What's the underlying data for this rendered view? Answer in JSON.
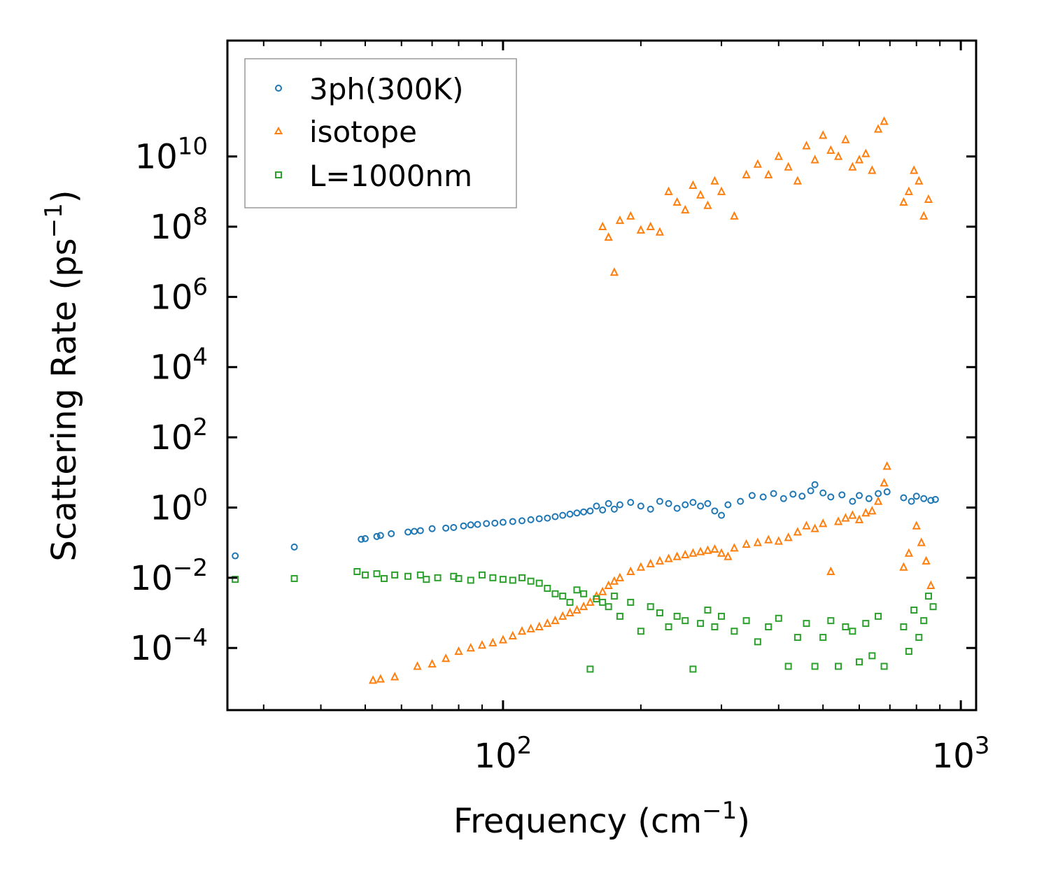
{
  "chart_data": {
    "type": "scatter",
    "x_scale": "log",
    "y_scale": "log",
    "xlabel_base": "Frequency (cm",
    "xlabel_sup": "−1",
    "xlabel_end": ")",
    "ylabel_base": "Scattering Rate (ps",
    "ylabel_sup": "−1",
    "ylabel_end": ")",
    "xlim": [
      25,
      1080
    ],
    "ylim": [
      1.7e-06,
      20000000000000
    ],
    "x_ticks": [
      {
        "value": 100,
        "base": "10",
        "exp": "2"
      },
      {
        "value": 1000,
        "base": "10",
        "exp": "3"
      }
    ],
    "y_ticks": [
      {
        "value": 0.0001,
        "base": "10",
        "exp": "−4"
      },
      {
        "value": 0.01,
        "base": "10",
        "exp": "−2"
      },
      {
        "value": 1,
        "base": "10",
        "exp": "0"
      },
      {
        "value": 100,
        "base": "10",
        "exp": "2"
      },
      {
        "value": 10000,
        "base": "10",
        "exp": "4"
      },
      {
        "value": 1000000,
        "base": "10",
        "exp": "6"
      },
      {
        "value": 100000000,
        "base": "10",
        "exp": "8"
      },
      {
        "value": 10000000000,
        "base": "10",
        "exp": "10"
      }
    ],
    "legend": {
      "position": "upper-left",
      "entries": [
        {
          "label": "3ph(300K)",
          "marker": "circle",
          "color": "#1f77b4"
        },
        {
          "label": "isotope",
          "marker": "triangle",
          "color": "#ff7f0e"
        },
        {
          "label": "L=1000nm",
          "marker": "square",
          "color": "#2ca02c"
        }
      ]
    },
    "series": [
      {
        "name": "3ph(300K)",
        "marker": "circle",
        "color": "#1f77b4",
        "points": [
          [
            26,
            0.042
          ],
          [
            35,
            0.075
          ],
          [
            49,
            0.125
          ],
          [
            50,
            0.13
          ],
          [
            53,
            0.15
          ],
          [
            54,
            0.16
          ],
          [
            57,
            0.18
          ],
          [
            62,
            0.2
          ],
          [
            64,
            0.21
          ],
          [
            66,
            0.22
          ],
          [
            70,
            0.25
          ],
          [
            75,
            0.26
          ],
          [
            78,
            0.27
          ],
          [
            82,
            0.3
          ],
          [
            85,
            0.32
          ],
          [
            88,
            0.33
          ],
          [
            92,
            0.35
          ],
          [
            96,
            0.36
          ],
          [
            100,
            0.38
          ],
          [
            105,
            0.4
          ],
          [
            110,
            0.42
          ],
          [
            115,
            0.45
          ],
          [
            120,
            0.48
          ],
          [
            125,
            0.5
          ],
          [
            130,
            0.55
          ],
          [
            135,
            0.6
          ],
          [
            140,
            0.65
          ],
          [
            145,
            0.7
          ],
          [
            150,
            0.75
          ],
          [
            155,
            0.8
          ],
          [
            160,
            1.1
          ],
          [
            165,
            0.85
          ],
          [
            170,
            1.3
          ],
          [
            175,
            0.9
          ],
          [
            180,
            1.2
          ],
          [
            190,
            1.4
          ],
          [
            200,
            1.1
          ],
          [
            210,
            0.9
          ],
          [
            220,
            1.5
          ],
          [
            230,
            1.3
          ],
          [
            240,
            0.95
          ],
          [
            250,
            1.2
          ],
          [
            260,
            1.4
          ],
          [
            270,
            1.1
          ],
          [
            280,
            1.3
          ],
          [
            290,
            0.8
          ],
          [
            300,
            0.6
          ],
          [
            310,
            1.2
          ],
          [
            330,
            1.5
          ],
          [
            350,
            2.2
          ],
          [
            370,
            2.0
          ],
          [
            390,
            2.5
          ],
          [
            410,
            1.8
          ],
          [
            430,
            2.4
          ],
          [
            450,
            2.1
          ],
          [
            470,
            3.0
          ],
          [
            480,
            4.5
          ],
          [
            500,
            2.6
          ],
          [
            520,
            2.0
          ],
          [
            550,
            2.3
          ],
          [
            580,
            1.5
          ],
          [
            600,
            2.2
          ],
          [
            630,
            1.8
          ],
          [
            660,
            2.5
          ],
          [
            690,
            2.8
          ],
          [
            750,
            1.9
          ],
          [
            780,
            1.5
          ],
          [
            800,
            2.1
          ],
          [
            830,
            1.8
          ],
          [
            860,
            1.6
          ],
          [
            880,
            1.7
          ]
        ]
      },
      {
        "name": "isotope",
        "marker": "triangle",
        "color": "#ff7f0e",
        "points": [
          [
            52,
            1.2e-05
          ],
          [
            54,
            1.3e-05
          ],
          [
            58,
            1.5e-05
          ],
          [
            65,
            3e-05
          ],
          [
            70,
            3.5e-05
          ],
          [
            75,
            5e-05
          ],
          [
            80,
            8e-05
          ],
          [
            85,
            0.0001
          ],
          [
            90,
            0.00012
          ],
          [
            95,
            0.00014
          ],
          [
            100,
            0.00017
          ],
          [
            105,
            0.00022
          ],
          [
            110,
            0.0003
          ],
          [
            115,
            0.00035
          ],
          [
            120,
            0.0004
          ],
          [
            125,
            0.0005
          ],
          [
            130,
            0.0006
          ],
          [
            135,
            0.0008
          ],
          [
            140,
            0.001
          ],
          [
            145,
            0.0012
          ],
          [
            150,
            0.0015
          ],
          [
            155,
            0.002
          ],
          [
            160,
            0.003
          ],
          [
            165,
            0.004
          ],
          [
            170,
            0.006
          ],
          [
            175,
            0.008
          ],
          [
            180,
            0.01
          ],
          [
            190,
            0.015
          ],
          [
            200,
            0.02
          ],
          [
            210,
            0.025
          ],
          [
            220,
            0.03
          ],
          [
            230,
            0.035
          ],
          [
            240,
            0.04
          ],
          [
            250,
            0.045
          ],
          [
            260,
            0.05
          ],
          [
            270,
            0.055
          ],
          [
            280,
            0.06
          ],
          [
            290,
            0.065
          ],
          [
            300,
            0.05
          ],
          [
            310,
            0.04
          ],
          [
            320,
            0.07
          ],
          [
            340,
            0.09
          ],
          [
            360,
            0.1
          ],
          [
            380,
            0.12
          ],
          [
            400,
            0.11
          ],
          [
            420,
            0.14
          ],
          [
            440,
            0.2
          ],
          [
            460,
            0.3
          ],
          [
            480,
            0.25
          ],
          [
            500,
            0.35
          ],
          [
            520,
            0.015
          ],
          [
            540,
            0.4
          ],
          [
            560,
            0.5
          ],
          [
            580,
            0.6
          ],
          [
            600,
            0.45
          ],
          [
            620,
            0.7
          ],
          [
            640,
            0.8
          ],
          [
            660,
            1.5
          ],
          [
            680,
            5
          ],
          [
            690,
            15
          ],
          [
            750,
            0.02
          ],
          [
            770,
            0.05
          ],
          [
            800,
            0.3
          ],
          [
            820,
            0.1
          ],
          [
            840,
            0.03
          ],
          [
            860,
            0.006
          ],
          [
            165,
            100000000
          ],
          [
            170,
            50000000
          ],
          [
            175,
            5000000
          ],
          [
            180,
            150000000
          ],
          [
            190,
            200000000
          ],
          [
            200,
            80000000
          ],
          [
            210,
            100000000
          ],
          [
            220,
            70000000
          ],
          [
            230,
            1000000000
          ],
          [
            240,
            500000000
          ],
          [
            250,
            300000000
          ],
          [
            260,
            1500000000
          ],
          [
            270,
            800000000
          ],
          [
            280,
            400000000
          ],
          [
            290,
            2000000000
          ],
          [
            300,
            1000000000
          ],
          [
            320,
            200000000
          ],
          [
            340,
            3000000000
          ],
          [
            360,
            6000000000
          ],
          [
            380,
            3000000000
          ],
          [
            400,
            10000000000
          ],
          [
            420,
            5000000000
          ],
          [
            440,
            2000000000
          ],
          [
            460,
            20000000000
          ],
          [
            480,
            8000000000
          ],
          [
            500,
            40000000000
          ],
          [
            520,
            15000000000
          ],
          [
            540,
            10000000000
          ],
          [
            560,
            30000000000
          ],
          [
            580,
            5000000000
          ],
          [
            600,
            8000000000
          ],
          [
            620,
            12000000000
          ],
          [
            640,
            4000000000
          ],
          [
            660,
            60000000000
          ],
          [
            680,
            100000000000
          ],
          [
            750,
            500000000
          ],
          [
            770,
            1000000000
          ],
          [
            790,
            4000000000
          ],
          [
            810,
            2000000000
          ],
          [
            830,
            200000000
          ],
          [
            850,
            600000000
          ]
        ]
      },
      {
        "name": "L=1000nm",
        "marker": "square",
        "color": "#2ca02c",
        "points": [
          [
            26,
            0.009
          ],
          [
            35,
            0.0095
          ],
          [
            48,
            0.015
          ],
          [
            50,
            0.012
          ],
          [
            53,
            0.013
          ],
          [
            55,
            0.0095
          ],
          [
            58,
            0.012
          ],
          [
            62,
            0.011
          ],
          [
            66,
            0.012
          ],
          [
            68,
            0.009
          ],
          [
            72,
            0.01
          ],
          [
            78,
            0.011
          ],
          [
            80,
            0.0095
          ],
          [
            85,
            0.0085
          ],
          [
            90,
            0.012
          ],
          [
            95,
            0.01
          ],
          [
            100,
            0.009
          ],
          [
            105,
            0.0085
          ],
          [
            110,
            0.01
          ],
          [
            115,
            0.008
          ],
          [
            120,
            0.007
          ],
          [
            125,
            0.005
          ],
          [
            130,
            0.0035
          ],
          [
            135,
            0.003
          ],
          [
            140,
            0.002
          ],
          [
            145,
            0.0045
          ],
          [
            150,
            0.0035
          ],
          [
            155,
            2.5e-05
          ],
          [
            160,
            0.0025
          ],
          [
            165,
            0.002
          ],
          [
            170,
            0.0015
          ],
          [
            175,
            0.003
          ],
          [
            180,
            0.0008
          ],
          [
            190,
            0.002
          ],
          [
            200,
            0.0003
          ],
          [
            210,
            0.0015
          ],
          [
            220,
            0.001
          ],
          [
            230,
            0.0004
          ],
          [
            240,
            0.0008
          ],
          [
            250,
            0.0006
          ],
          [
            260,
            2.5e-05
          ],
          [
            270,
            0.0005
          ],
          [
            280,
            0.0012
          ],
          [
            290,
            0.0004
          ],
          [
            300,
            0.0008
          ],
          [
            320,
            0.0003
          ],
          [
            340,
            0.0006
          ],
          [
            360,
            0.00015
          ],
          [
            380,
            0.0004
          ],
          [
            400,
            0.0007
          ],
          [
            420,
            3e-05
          ],
          [
            440,
            0.0002
          ],
          [
            460,
            0.0005
          ],
          [
            480,
            3e-05
          ],
          [
            500,
            0.0002
          ],
          [
            520,
            0.0006
          ],
          [
            540,
            3e-05
          ],
          [
            560,
            0.0004
          ],
          [
            580,
            0.0003
          ],
          [
            600,
            4e-05
          ],
          [
            620,
            0.0005
          ],
          [
            640,
            6e-05
          ],
          [
            660,
            0.0008
          ],
          [
            680,
            3e-05
          ],
          [
            750,
            0.0004
          ],
          [
            770,
            8e-05
          ],
          [
            790,
            0.0012
          ],
          [
            810,
            0.0002
          ],
          [
            830,
            0.0006
          ],
          [
            850,
            0.003
          ],
          [
            870,
            0.0015
          ]
        ]
      }
    ]
  }
}
